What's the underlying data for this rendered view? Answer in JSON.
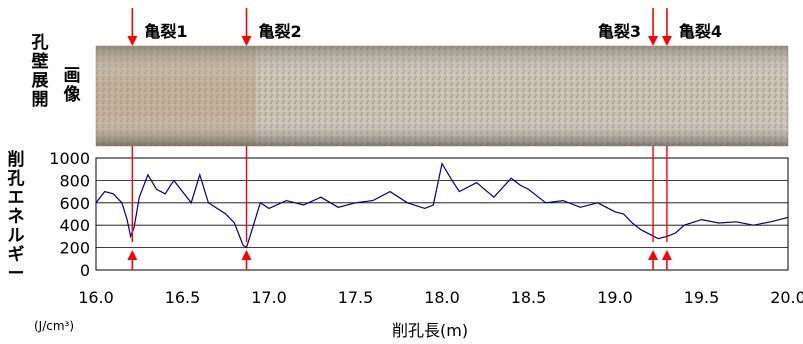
{
  "labels": {
    "image_label": "孔\n壁\n展\n開",
    "image_label2": "画\n像",
    "ylabel": "削\n孔\nエ\nネ\nル\nギ\nー",
    "yunit": "(J/cm³)",
    "xlabel": "削孔長(m)"
  },
  "cracks": [
    {
      "name": "亀裂1",
      "x": 16.21
    },
    {
      "name": "亀裂2",
      "x": 16.87
    },
    {
      "name": "亀裂3",
      "x": 19.22
    },
    {
      "name": "亀裂4",
      "x": 19.3
    }
  ],
  "colors": {
    "line": "#000080",
    "marker": "#ff0000",
    "grid": "#000000"
  },
  "chart_data": {
    "type": "line",
    "title": "",
    "xlabel": "削孔長(m)",
    "ylabel": "削孔エネルギー",
    "xlim": [
      16.0,
      20.0
    ],
    "ylim": [
      0,
      1000
    ],
    "xticks": [
      "16.0",
      "16.5",
      "17.0",
      "17.5",
      "18.0",
      "18.5",
      "19.0",
      "19.5",
      "20.0"
    ],
    "yticks": [
      "0",
      "200",
      "400",
      "600",
      "800",
      "1000"
    ],
    "grid": true,
    "series": [
      {
        "x": [
          16.0,
          16.05,
          16.1,
          16.15,
          16.18,
          16.2,
          16.22,
          16.25,
          16.3,
          16.35,
          16.4,
          16.45,
          16.5,
          16.55,
          16.6,
          16.65,
          16.7,
          16.75,
          16.8,
          16.83,
          16.85,
          16.87,
          16.9,
          16.95,
          17.0,
          17.1,
          17.2,
          17.3,
          17.4,
          17.5,
          17.6,
          17.7,
          17.8,
          17.9,
          17.95,
          18.0,
          18.05,
          18.1,
          18.2,
          18.3,
          18.4,
          18.45,
          18.5,
          18.6,
          18.7,
          18.8,
          18.9,
          19.0,
          19.05,
          19.1,
          19.15,
          19.2,
          19.25,
          19.3,
          19.35,
          19.4,
          19.5,
          19.6,
          19.7,
          19.8,
          19.9,
          20.0
        ],
        "y": [
          600,
          700,
          680,
          600,
          450,
          300,
          380,
          650,
          850,
          720,
          680,
          800,
          700,
          600,
          850,
          600,
          550,
          500,
          420,
          300,
          220,
          200,
          350,
          600,
          550,
          620,
          580,
          650,
          560,
          600,
          620,
          700,
          600,
          550,
          580,
          950,
          820,
          700,
          780,
          650,
          820,
          760,
          720,
          600,
          620,
          560,
          600,
          520,
          500,
          420,
          360,
          320,
          280,
          300,
          330,
          400,
          450,
          420,
          430,
          400,
          430,
          470
        ]
      }
    ]
  }
}
